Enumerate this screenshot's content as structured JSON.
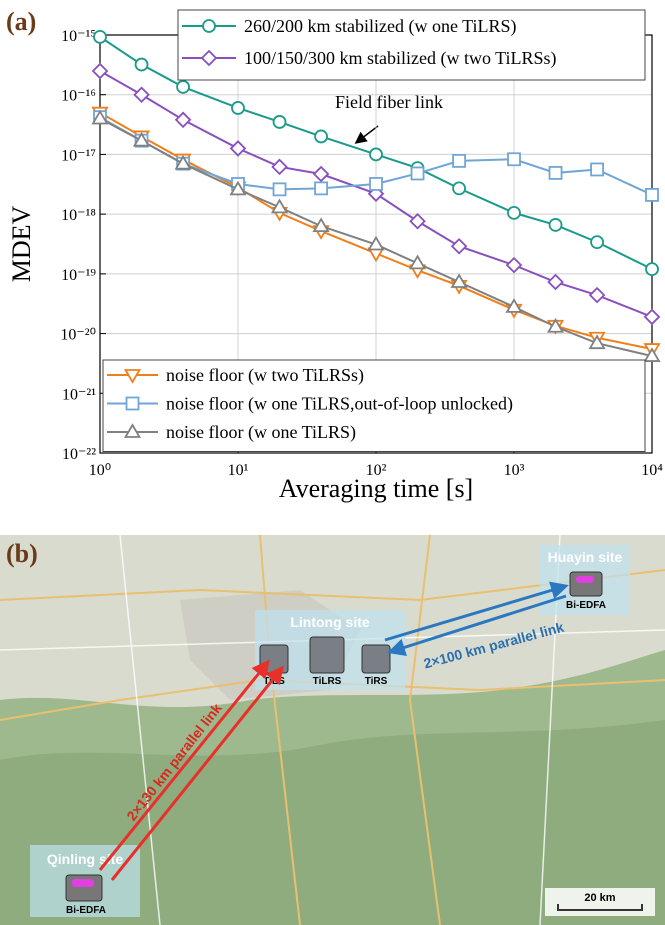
{
  "chart_data": {
    "type": "line",
    "panel_label": "(a)",
    "xlabel": "Averaging time [s]",
    "ylabel": "MDEV",
    "log_x": true,
    "log_y": true,
    "grid": true,
    "x": [
      1,
      2,
      4,
      10,
      20,
      40,
      100,
      200,
      400,
      1000,
      2000,
      4000,
      10000
    ],
    "xlim": [
      1,
      10000
    ],
    "xticks": [
      {
        "value": 1,
        "label": "10⁰"
      },
      {
        "value": 10,
        "label": "10¹"
      },
      {
        "value": 100,
        "label": "10²"
      },
      {
        "value": 1000,
        "label": "10³"
      },
      {
        "value": 10000,
        "label": "10⁴"
      }
    ],
    "ylim": [
      1e-22,
      1e-15
    ],
    "yticks": [
      {
        "value": 1e-15,
        "label": "10⁻¹⁵"
      },
      {
        "value": 1e-16,
        "label": "10⁻¹⁶"
      },
      {
        "value": 1e-17,
        "label": "10⁻¹⁷"
      },
      {
        "value": 1e-18,
        "label": "10⁻¹⁸"
      },
      {
        "value": 1e-19,
        "label": "10⁻¹⁹"
      },
      {
        "value": 1e-20,
        "label": "10⁻²⁰"
      },
      {
        "value": 1e-21,
        "label": "10⁻²¹"
      },
      {
        "value": 1e-22,
        "label": "10⁻²²"
      }
    ],
    "annotation": "Field fiber link",
    "series": [
      {
        "name": "260/200 km stabilized (w one TiLRS)",
        "color": "#1a9a8a",
        "marker": "circle",
        "legend": "upper right",
        "values": [
          9.3e-16,
          3.2e-16,
          1.35e-16,
          6e-17,
          3.5e-17,
          2e-17,
          1e-17,
          5.9e-18,
          2.7e-18,
          1.05e-18,
          6.6e-19,
          3.4e-19,
          1.2e-19
        ]
      },
      {
        "name": "100/150/300 km stabilized (w two TiLRSs)",
        "color": "#8a4fbf",
        "marker": "diamond",
        "legend": "upper right",
        "values": [
          2.5e-16,
          1e-16,
          3.8e-17,
          1.26e-17,
          6.2e-18,
          4.7e-18,
          2.2e-18,
          7.6e-19,
          2.9e-19,
          1.4e-19,
          7.3e-20,
          4.4e-20,
          1.9e-20
        ]
      },
      {
        "name": "noise floor (w two TiLRSs)",
        "color": "#f07f1a",
        "marker": "triangle-down",
        "legend": "lower left",
        "values": [
          5e-17,
          2e-17,
          8.2e-18,
          2.8e-18,
          1.05e-18,
          5.2e-19,
          2.2e-19,
          1.15e-19,
          6.3e-20,
          2.5e-20,
          1.35e-20,
          8.5e-21,
          5.5e-21
        ]
      },
      {
        "name": "noise floor (w one TiLRS,out-of-loop unlocked)",
        "color": "#6fa6d6",
        "marker": "square",
        "legend": "lower left",
        "values": [
          4.2e-17,
          1.7e-17,
          7e-18,
          3.2e-18,
          2.6e-18,
          2.7e-18,
          3.2e-18,
          4.8e-18,
          7.8e-18,
          8.3e-18,
          4.9e-18,
          5.6e-18,
          2.1e-18
        ]
      },
      {
        "name": "noise floor (w one TiLRS)",
        "color": "#808080",
        "marker": "triangle-up",
        "legend": "lower left",
        "values": [
          4e-17,
          1.7e-17,
          7e-18,
          2.6e-18,
          1.3e-18,
          6.3e-19,
          3.1e-19,
          1.5e-19,
          7.3e-20,
          2.8e-20,
          1.3e-20,
          6.9e-21,
          4.2e-21
        ]
      }
    ]
  },
  "panel_b": {
    "label": "(b)",
    "huayin": {
      "name": "Huayin site",
      "device": "Bi-EDFA"
    },
    "lintong": {
      "name": "Lintong site",
      "devices": [
        "TiLS",
        "TiLRS",
        "TiRS"
      ]
    },
    "qinling": {
      "name": "Qinling site",
      "device": "Bi-EDFA"
    },
    "links": [
      "2×100 km parallel link",
      "2×130 km parallel link"
    ],
    "scale": "20 km"
  }
}
